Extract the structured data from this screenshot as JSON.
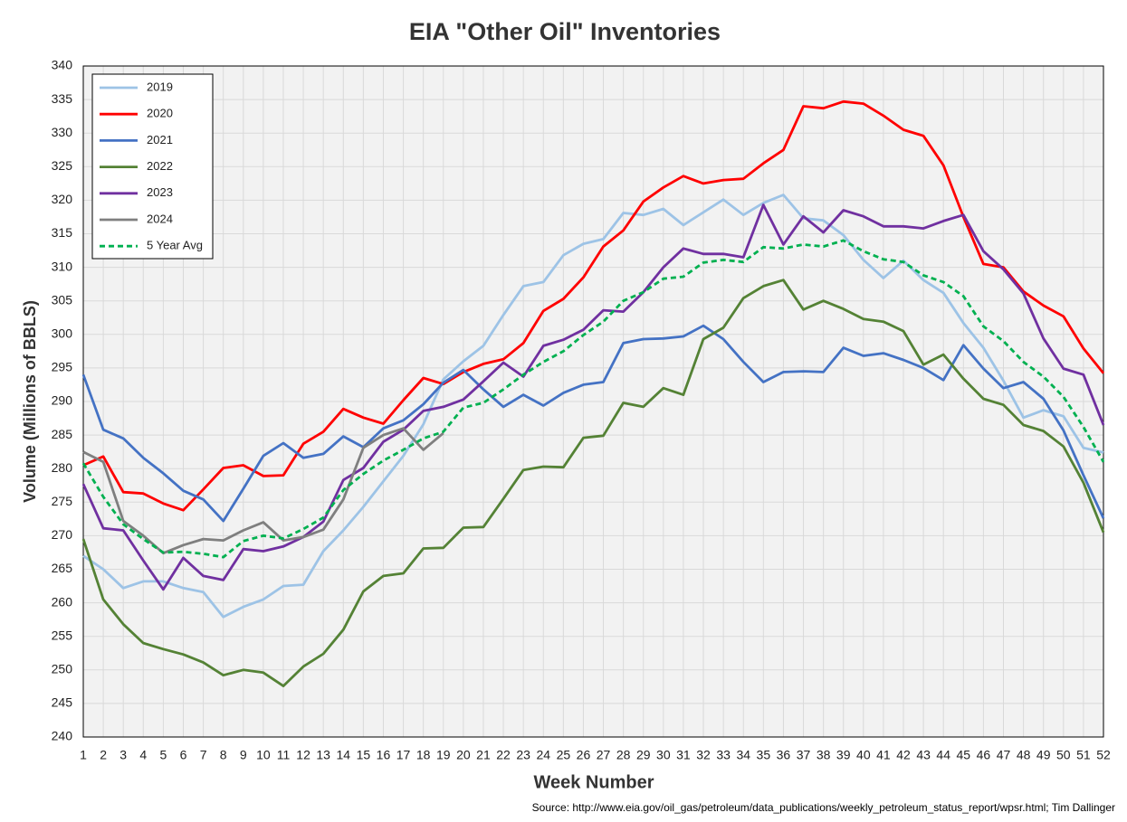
{
  "chart_data": {
    "type": "line",
    "title": "EIA \"Other Oil\" Inventories",
    "x_label": "Week Number",
    "y_label": "Volume (Millions of BBLS)",
    "source": "Source: http://www.eia.gov/oil_gas/petroleum/data_publications/weekly_petroleum_status_report/wpsr.html; Tim Dallinger",
    "categories": [
      1,
      2,
      3,
      4,
      5,
      6,
      7,
      8,
      9,
      10,
      11,
      12,
      13,
      14,
      15,
      16,
      17,
      18,
      19,
      20,
      21,
      22,
      23,
      24,
      25,
      26,
      27,
      28,
      29,
      30,
      31,
      32,
      33,
      34,
      35,
      36,
      37,
      38,
      39,
      40,
      41,
      42,
      43,
      44,
      45,
      46,
      47,
      48,
      49,
      50,
      51,
      52
    ],
    "ylim": [
      240,
      340
    ],
    "yticks": [
      240,
      245,
      250,
      255,
      260,
      265,
      270,
      275,
      280,
      285,
      290,
      295,
      300,
      305,
      310,
      315,
      320,
      325,
      330,
      335,
      340
    ],
    "grid": true,
    "legend": "upper left",
    "series": [
      {
        "name": "2019",
        "color": "#9dc3e6",
        "values": [
          267,
          265,
          262.2,
          263.2,
          263.2,
          262.2,
          261.6,
          257.9,
          259.4,
          260.5,
          262.5,
          262.7,
          267.7,
          270.8,
          274.3,
          278.1,
          281.9,
          286.6,
          293.3,
          296,
          298.3,
          302.9,
          307.2,
          307.8,
          311.8,
          313.5,
          314.2,
          318.1,
          317.8,
          318.7,
          316.3,
          318.2,
          320.1,
          317.8,
          319.6,
          320.8,
          317.3,
          317,
          314.8,
          311.1,
          308.4,
          311,
          308.1,
          306.2,
          301.7,
          298,
          293.1,
          287.6,
          288.7,
          287.8,
          283.1,
          282.4
        ]
      },
      {
        "name": "2020",
        "color": "#ff0000",
        "values": [
          280.5,
          281.8,
          276.5,
          276.3,
          274.8,
          273.8,
          276.9,
          280.1,
          280.5,
          278.9,
          279,
          283.7,
          285.5,
          288.9,
          287.6,
          286.7,
          290.2,
          293.5,
          292.6,
          294.4,
          295.6,
          296.3,
          298.7,
          303.5,
          305.3,
          308.5,
          313.1,
          315.5,
          319.8,
          321.9,
          323.6,
          322.5,
          323,
          323.2,
          325.5,
          327.5,
          334,
          333.7,
          334.7,
          334.4,
          332.6,
          330.5,
          329.6,
          325.2,
          317.5,
          310.5,
          310,
          306.4,
          304.3,
          302.7,
          297.9,
          294.2
        ]
      },
      {
        "name": "2021",
        "color": "#4472c4",
        "values": [
          294,
          285.8,
          284.5,
          281.6,
          279.3,
          276.7,
          275.4,
          272.2,
          277,
          281.9,
          283.8,
          281.6,
          282.2,
          284.8,
          283.2,
          286,
          287.2,
          289.6,
          292.8,
          294.7,
          291.8,
          289.2,
          291,
          289.4,
          291.3,
          292.5,
          292.9,
          298.7,
          299.3,
          299.4,
          299.7,
          301.3,
          299.3,
          295.9,
          292.9,
          294.4,
          294.5,
          294.4,
          298,
          296.8,
          297.2,
          296.2,
          295,
          293.2,
          298.4,
          294.9,
          292,
          292.9,
          290.4,
          285.7,
          279,
          272.6
        ]
      },
      {
        "name": "2022",
        "color": "#548235",
        "values": [
          269.5,
          260.5,
          256.8,
          254,
          253.1,
          252.3,
          251.1,
          249.2,
          250,
          249.6,
          247.6,
          250.5,
          252.4,
          256,
          261.7,
          264,
          264.4,
          268.1,
          268.2,
          271.2,
          271.3,
          275.5,
          279.8,
          280.3,
          280.2,
          284.6,
          284.9,
          289.8,
          289.2,
          292,
          291,
          299.3,
          301,
          305.4,
          307.2,
          308.1,
          303.7,
          305,
          303.8,
          302.3,
          301.9,
          300.5,
          295.5,
          297,
          293.4,
          290.4,
          289.5,
          286.5,
          285.6,
          283.3,
          277.9,
          270.5
        ]
      },
      {
        "name": "2023",
        "color": "#7030a0",
        "values": [
          277.7,
          271.1,
          270.8,
          266.3,
          262,
          266.7,
          264,
          263.4,
          268,
          267.7,
          268.4,
          269.8,
          272.1,
          278.3,
          280.1,
          284,
          285.8,
          288.6,
          289.2,
          290.3,
          293,
          295.8,
          293.7,
          298.3,
          299.2,
          300.7,
          303.6,
          303.4,
          306.3,
          310,
          312.8,
          312,
          312,
          311.5,
          319.3,
          313.4,
          317.6,
          315.2,
          318.5,
          317.6,
          316.1,
          316.1,
          315.8,
          316.9,
          317.8,
          312.4,
          309.7,
          306.1,
          299.4,
          294.9,
          294,
          286.5
        ]
      },
      {
        "name": "2024",
        "color": "#7f7f7f",
        "values": [
          282.5,
          281,
          272.2,
          270,
          267.4,
          268.6,
          269.5,
          269.3,
          270.8,
          272,
          269.3,
          269.8,
          270.9,
          275.4,
          283.1,
          285,
          286,
          282.8,
          285.3,
          null,
          null,
          null,
          null,
          null,
          null,
          null,
          null,
          null,
          null,
          null,
          null,
          null,
          null,
          null,
          null,
          null,
          null,
          null,
          null,
          null,
          null,
          null,
          null,
          null,
          null,
          null,
          null,
          null,
          null,
          null,
          null,
          null
        ]
      },
      {
        "name": "5 Year Avg",
        "color": "#00b050",
        "dashed": true,
        "values": [
          280.8,
          275.8,
          271.7,
          269.5,
          267.5,
          267.6,
          267.3,
          266.8,
          269.2,
          270,
          269.6,
          271,
          272.7,
          276.8,
          279.2,
          281.2,
          282.8,
          284.5,
          285.5,
          289.1,
          289.8,
          291.8,
          294,
          295.9,
          297.5,
          299.9,
          301.9,
          305,
          306.3,
          308.3,
          308.6,
          310.7,
          311.1,
          310.8,
          313,
          312.8,
          313.4,
          313.1,
          314,
          312.4,
          311.2,
          310.8,
          308.8,
          307.8,
          305.7,
          301.2,
          299,
          295.9,
          293.7,
          290.7,
          286.2,
          281
        ]
      }
    ]
  }
}
